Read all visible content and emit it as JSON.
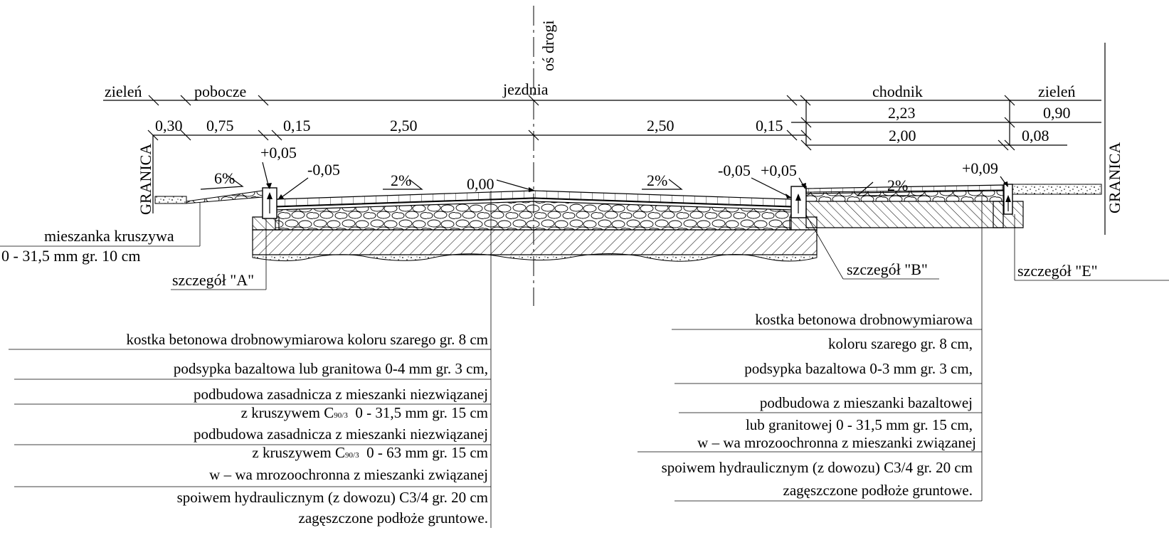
{
  "axis_label": "oś drogi",
  "zones": {
    "zielen_left": "zieleń",
    "pobocze": "pobocze",
    "jezdnia": "jezdnia",
    "chodnik": "chodnik",
    "zielen_right": "zieleń"
  },
  "dimensions": {
    "d_030": "0,30",
    "d_075": "0,75",
    "d_015_left": "0,15",
    "d_250_left": "2,50",
    "d_250_right": "2,50",
    "d_015_right": "0,15",
    "d_223": "2,23",
    "d_090": "0,90",
    "d_200": "2,00",
    "d_008": "0,08"
  },
  "boundary_left": "GRANICA",
  "boundary_right": "GRANICA",
  "elevations": {
    "e_plus005_left": "+0,05",
    "e_minus005_left": "-0,05",
    "e_000": "0,00",
    "e_minus005_right": "-0,05",
    "e_plus005_right": "+0,05",
    "e_plus009": "+0,09"
  },
  "slopes": {
    "s_6": "6%",
    "s_2_left": "2%",
    "s_2_right": "2%",
    "s_2_walk": "2%"
  },
  "left_note": {
    "line1": "mieszanka kruszywa",
    "line2": "0 - 31,5 mm gr. 10 cm"
  },
  "details": {
    "a": "szczegół \"A\"",
    "b": "szczegół \"B\"",
    "e": "szczegół \"E\""
  },
  "road_layers": {
    "l1": "kostka betonowa drobnowymiarowa koloru szarego gr. 8 cm",
    "l2": "podsypka bazaltowa lub granitowa 0-4 mm gr. 3 cm,",
    "l3a": "podbudowa zasadnicza z mieszanki niezwiązanej",
    "l3b_pre": "z kruszywem C",
    "l3b_sub": "90/3",
    "l3b_post": "  0 - 31,5 mm gr. 15 cm",
    "l4a": "podbudowa zasadnicza z mieszanki niezwiązanej",
    "l4b_pre": "z kruszywem C",
    "l4b_sub": "90/3",
    "l4b_post": "  0 - 63 mm gr. 15 cm",
    "l5a": "w – wa mrozoochronna z mieszanki związanej",
    "l5b": "spoiwem hydraulicznym (z dowozu)  C3/4 gr. 20 cm",
    "l6": "zagęszczone podłoże gruntowe."
  },
  "walk_layers": {
    "l1a": "kostka betonowa drobnowymiarowa",
    "l1b": "koloru szarego gr. 8 cm,",
    "l2": "podsypka bazaltowa 0-3 mm gr. 3 cm,",
    "l3a": "podbudowa z mieszanki bazaltowej",
    "l3b": "lub granitowej 0 - 31,5 mm gr. 15 cm,",
    "l4a": "w – wa mrozoochronna z mieszanki związanej",
    "l4b": "spoiwem hydraulicznym (z dowozu)  C3/4 gr. 20 cm",
    "l5": "zagęszczone podłoże gruntowe."
  }
}
